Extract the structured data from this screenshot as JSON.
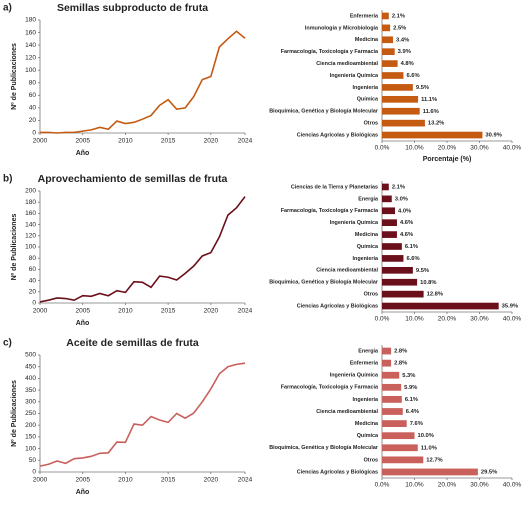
{
  "chart_data": [
    {
      "type": "line",
      "panel_label": "a)",
      "title": "Semillas subproducto de fruta",
      "xlabel": "Año",
      "ylabel": "Nº de Publicaciones",
      "color": "#c55a11",
      "x": [
        2000,
        2001,
        2002,
        2003,
        2004,
        2005,
        2006,
        2007,
        2008,
        2009,
        2010,
        2011,
        2012,
        2013,
        2014,
        2015,
        2016,
        2017,
        2018,
        2019,
        2020,
        2021,
        2022,
        2023,
        2024
      ],
      "values": [
        1,
        1,
        0,
        1,
        1,
        3,
        5,
        9,
        6,
        19,
        15,
        17,
        22,
        28,
        44,
        53,
        38,
        40,
        58,
        85,
        90,
        137,
        150,
        162,
        151
      ],
      "xlim": [
        2000,
        2024
      ],
      "xticks": [
        2000,
        2005,
        2010,
        2015,
        2020,
        2024
      ],
      "ylim": [
        0,
        180
      ],
      "yticks": [
        0,
        20,
        40,
        60,
        80,
        100,
        120,
        140,
        160,
        180
      ]
    },
    {
      "type": "hbar",
      "xlabel": "Porcentaje (%)",
      "color": "#c55a11",
      "categories": [
        "Enfermería",
        "Inmunología y Microbiología",
        "Medicina",
        "Farmacología, Toxicología y Farmacia",
        "Ciencia medioambiental",
        "Ingeniería Química",
        "Ingeniería",
        "Química",
        "Bioquímica, Genética y Biología Molecular",
        "Otros",
        "Ciencias Agrícolas y Biológicas"
      ],
      "values": [
        2.1,
        2.5,
        3.4,
        3.9,
        4.8,
        6.6,
        9.5,
        11.1,
        11.6,
        13.2,
        30.9
      ],
      "value_labels": [
        "2.1%",
        "2.5%",
        "3.4%",
        "3.9%",
        "4.8%",
        "6.6%",
        "9.5%",
        "11.1%",
        "11.6%",
        "13.2%",
        "30.9%"
      ],
      "xlim": [
        0,
        40
      ],
      "xticks": [
        {
          "value": 0,
          "label": "0.0%"
        },
        {
          "value": 10,
          "label": "10.0%"
        },
        {
          "value": 20,
          "label": "20.0%"
        },
        {
          "value": 30,
          "label": "30.0%"
        },
        {
          "value": 40,
          "label": "40.0%"
        }
      ]
    },
    {
      "type": "line",
      "panel_label": "b)",
      "title": "Aprovechamiento de semillas de fruta",
      "xlabel": "Año",
      "ylabel": "Nº de Publicaciones",
      "color": "#6b0f1a",
      "x": [
        2000,
        2001,
        2002,
        2003,
        2004,
        2005,
        2006,
        2007,
        2008,
        2009,
        2010,
        2011,
        2012,
        2013,
        2014,
        2015,
        2016,
        2017,
        2018,
        2019,
        2020,
        2021,
        2022,
        2023,
        2024
      ],
      "values": [
        2,
        5,
        9,
        8,
        5,
        13,
        12,
        17,
        13,
        22,
        19,
        38,
        37,
        28,
        48,
        46,
        41,
        53,
        66,
        84,
        90,
        118,
        157,
        170,
        190
      ],
      "xlim": [
        2000,
        2024
      ],
      "xticks": [
        2000,
        2005,
        2010,
        2015,
        2020,
        2024
      ],
      "ylim": [
        0,
        200
      ],
      "yticks": [
        0,
        20,
        40,
        60,
        80,
        100,
        120,
        140,
        160,
        180,
        200
      ]
    },
    {
      "type": "hbar",
      "color": "#6b0f1a",
      "categories": [
        "Ciencias de la Tierra y Planetarias",
        "Energía",
        "Farmacología, Toxicología y Farmacia",
        "Ingeniería Química",
        "Medicina",
        "Química",
        "Ingeniería",
        "Ciencia medioambiental",
        "Bioquímica, Genética y Biología Molecular",
        "Otros",
        "Ciencias Agrícolas y Biológicas"
      ],
      "values": [
        2.1,
        3.0,
        4.0,
        4.6,
        4.6,
        6.1,
        6.6,
        9.5,
        10.8,
        12.8,
        35.9
      ],
      "value_labels": [
        "2.1%",
        "3.0%",
        "4.0%",
        "4.6%",
        "4.6%",
        "6.1%",
        "6.6%",
        "9.5%",
        "10.8%",
        "12.8%",
        "35.9%"
      ],
      "xlim": [
        0,
        40
      ],
      "xticks": [
        {
          "value": 0,
          "label": "0.0%"
        },
        {
          "value": 10,
          "label": "10.0%"
        },
        {
          "value": 20,
          "label": "20.0%"
        },
        {
          "value": 30,
          "label": "30.0%"
        },
        {
          "value": 40,
          "label": "40.0%"
        }
      ]
    },
    {
      "type": "line",
      "panel_label": "c)",
      "title": "Aceite de semillas de fruta",
      "xlabel": "Año",
      "ylabel": "Nº de Publicaciones",
      "color": "#c9605b",
      "x": [
        2000,
        2001,
        2002,
        2003,
        2004,
        2005,
        2006,
        2007,
        2008,
        2009,
        2010,
        2011,
        2012,
        2013,
        2014,
        2015,
        2016,
        2017,
        2018,
        2019,
        2020,
        2021,
        2022,
        2023,
        2024
      ],
      "values": [
        25,
        33,
        47,
        37,
        57,
        60,
        67,
        80,
        82,
        128,
        127,
        205,
        200,
        237,
        222,
        212,
        250,
        230,
        252,
        300,
        355,
        420,
        450,
        460,
        465
      ],
      "xlim": [
        2000,
        2024
      ],
      "xticks": [
        2000,
        2005,
        2010,
        2015,
        2020,
        2024
      ],
      "ylim": [
        0,
        500
      ],
      "yticks": [
        0,
        50,
        100,
        150,
        200,
        250,
        300,
        350,
        400,
        450,
        500
      ]
    },
    {
      "type": "hbar",
      "color": "#c9605b",
      "categories": [
        "Energía",
        "Enfermería",
        "Ingeniería Química",
        "Farmacología, Toxicología y Farmacia",
        "Ingeniería",
        "Ciencia medioambiental",
        "Medicina",
        "Química",
        "Bioquímica, Genética y Biología Molecular",
        "Otros",
        "Ciencias Agrícolas y Biológicas"
      ],
      "values": [
        2.8,
        2.8,
        5.3,
        5.9,
        6.1,
        6.4,
        7.6,
        10.0,
        11.0,
        12.7,
        29.5
      ],
      "value_labels": [
        "2.8%",
        "2.8%",
        "5.3%",
        "5.9%",
        "6.1%",
        "6.4%",
        "7.6%",
        "10.0%",
        "11.0%",
        "12.7%",
        "29.5%"
      ],
      "xlim": [
        0,
        40
      ],
      "xticks": [
        {
          "value": 0,
          "label": "0.0%"
        },
        {
          "value": 10,
          "label": "10.0%"
        },
        {
          "value": 20,
          "label": "20.0%"
        },
        {
          "value": 30,
          "label": "30.0%"
        },
        {
          "value": 40,
          "label": "40.0%"
        }
      ]
    }
  ]
}
